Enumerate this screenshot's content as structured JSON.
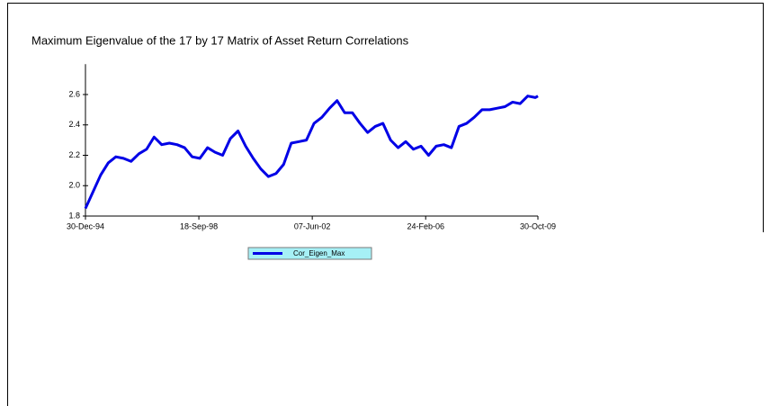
{
  "chart_data": {
    "type": "line",
    "title": "Maximum Eigenvalue of the 17 by 17 Matrix of Asset Return Correlations",
    "x": [
      "1994-12-30",
      "1995-03-31",
      "1995-06-30",
      "1995-09-29",
      "1995-12-29",
      "1996-03-29",
      "1996-06-28",
      "1996-09-30",
      "1996-12-31",
      "1997-03-31",
      "1997-06-30",
      "1997-09-30",
      "1997-12-31",
      "1998-03-31",
      "1998-06-30",
      "1998-09-30",
      "1998-12-31",
      "1999-03-31",
      "1999-06-30",
      "1999-09-30",
      "1999-12-31",
      "2000-03-31",
      "2000-06-30",
      "2000-09-29",
      "2000-12-29",
      "2001-03-30",
      "2001-06-29",
      "2001-09-28",
      "2001-12-31",
      "2002-03-29",
      "2002-06-28",
      "2002-09-30",
      "2002-12-31",
      "2003-03-31",
      "2003-06-30",
      "2003-09-30",
      "2003-12-31",
      "2004-03-31",
      "2004-06-30",
      "2004-09-30",
      "2004-12-31",
      "2005-03-31",
      "2005-06-30",
      "2005-09-30",
      "2005-12-30",
      "2006-03-31",
      "2006-06-30",
      "2006-09-29",
      "2006-12-29",
      "2007-03-30",
      "2007-06-29",
      "2007-09-28",
      "2007-12-31",
      "2008-03-31",
      "2008-06-30",
      "2008-09-30",
      "2008-12-31",
      "2009-03-31",
      "2009-06-30",
      "2009-09-30",
      "2009-10-30"
    ],
    "series": [
      {
        "name": "Cor_Eigen_Max",
        "color": "#0000e6",
        "values": [
          1.85,
          1.96,
          2.07,
          2.15,
          2.19,
          2.18,
          2.16,
          2.21,
          2.24,
          2.32,
          2.27,
          2.28,
          2.27,
          2.25,
          2.19,
          2.18,
          2.25,
          2.22,
          2.2,
          2.31,
          2.36,
          2.26,
          2.18,
          2.11,
          2.06,
          2.08,
          2.14,
          2.28,
          2.29,
          2.3,
          2.41,
          2.45,
          2.51,
          2.56,
          2.48,
          2.48,
          2.41,
          2.35,
          2.39,
          2.41,
          2.3,
          2.25,
          2.29,
          2.24,
          2.26,
          2.2,
          2.26,
          2.27,
          2.25,
          2.39,
          2.41,
          2.45,
          2.5,
          2.5,
          2.51,
          2.52,
          2.55,
          2.54,
          2.59,
          2.58,
          2.59
        ]
      }
    ],
    "xlim": [
      "1994-12-30",
      "2009-10-30"
    ],
    "xticks": [
      {
        "value": "1994-12-30",
        "label": "30-Dec-94"
      },
      {
        "value": "1998-09-18",
        "label": "18-Sep-98"
      },
      {
        "value": "2002-06-07",
        "label": "07-Jun-02"
      },
      {
        "value": "2006-02-24",
        "label": "24-Feb-06"
      },
      {
        "value": "2009-10-30",
        "label": "30-Oct-09"
      }
    ],
    "ylim": [
      1.8,
      2.8
    ],
    "yticks": [
      1.8,
      {
        "value": 2,
        "label": "2.0"
      },
      2.2,
      2.4,
      2.6
    ],
    "legend": "bottom"
  }
}
